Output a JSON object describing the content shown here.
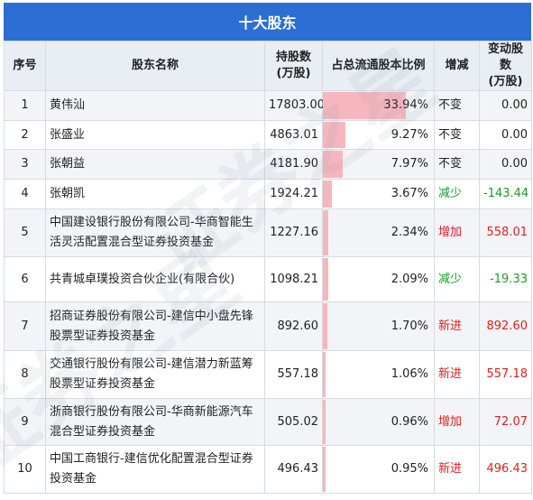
{
  "title": "十大股东",
  "headers": {
    "index": "序号",
    "name": "股东名称",
    "shares": "持股数\n(万股)",
    "ratio": "占总流通股本比例",
    "change": "增减",
    "delta": "变动股数\n(万股)"
  },
  "rows": [
    {
      "index": "1",
      "name": "黄伟汕",
      "shares": "17803.00",
      "ratio": "33.94%",
      "ratio_value": 33.94,
      "change": "不变",
      "change_type": "flat",
      "delta": "0.00"
    },
    {
      "index": "2",
      "name": "张盛业",
      "shares": "4863.01",
      "ratio": "9.27%",
      "ratio_value": 9.27,
      "change": "不变",
      "change_type": "flat",
      "delta": "0.00"
    },
    {
      "index": "3",
      "name": "张朝益",
      "shares": "4181.90",
      "ratio": "7.97%",
      "ratio_value": 7.97,
      "change": "不变",
      "change_type": "flat",
      "delta": "0.00"
    },
    {
      "index": "4",
      "name": "张朝凯",
      "shares": "1924.21",
      "ratio": "3.67%",
      "ratio_value": 3.67,
      "change": "减少",
      "change_type": "down",
      "delta": "-143.44"
    },
    {
      "index": "5",
      "name": "中国建设银行股份有限公司-华商智能生活灵活配置混合型证券投资基金",
      "shares": "1227.16",
      "ratio": "2.34%",
      "ratio_value": 2.34,
      "change": "增加",
      "change_type": "up",
      "delta": "558.01"
    },
    {
      "index": "6",
      "name": "共青城卓璞投资合伙企业(有限合伙)",
      "shares": "1098.21",
      "ratio": "2.09%",
      "ratio_value": 2.09,
      "change": "减少",
      "change_type": "down",
      "delta": "-19.33"
    },
    {
      "index": "7",
      "name": "招商证券股份有限公司-建信中小盘先锋股票型证券投资基金",
      "shares": "892.60",
      "ratio": "1.70%",
      "ratio_value": 1.7,
      "change": "新进",
      "change_type": "up",
      "delta": "892.60"
    },
    {
      "index": "8",
      "name": "交通银行股份有限公司-建信潜力新蓝筹股票型证券投资基金",
      "shares": "557.18",
      "ratio": "1.06%",
      "ratio_value": 1.06,
      "change": "新进",
      "change_type": "up",
      "delta": "557.18"
    },
    {
      "index": "9",
      "name": "浙商银行股份有限公司-华商新能源汽车混合型证券投资基金",
      "shares": "505.02",
      "ratio": "0.96%",
      "ratio_value": 0.96,
      "change": "增加",
      "change_type": "up",
      "delta": "72.07"
    },
    {
      "index": "10",
      "name": "中国工商银行-建信优化配置混合型证券投资基金",
      "shares": "496.43",
      "ratio": "0.95%",
      "ratio_value": 0.95,
      "change": "新进",
      "change_type": "up",
      "delta": "496.43"
    }
  ],
  "colors": {
    "header_blue": "#2c6fd4",
    "bar_pink": "#f7b6bd",
    "increase_red": "#e02020",
    "decrease_green": "#1a9a2a"
  }
}
